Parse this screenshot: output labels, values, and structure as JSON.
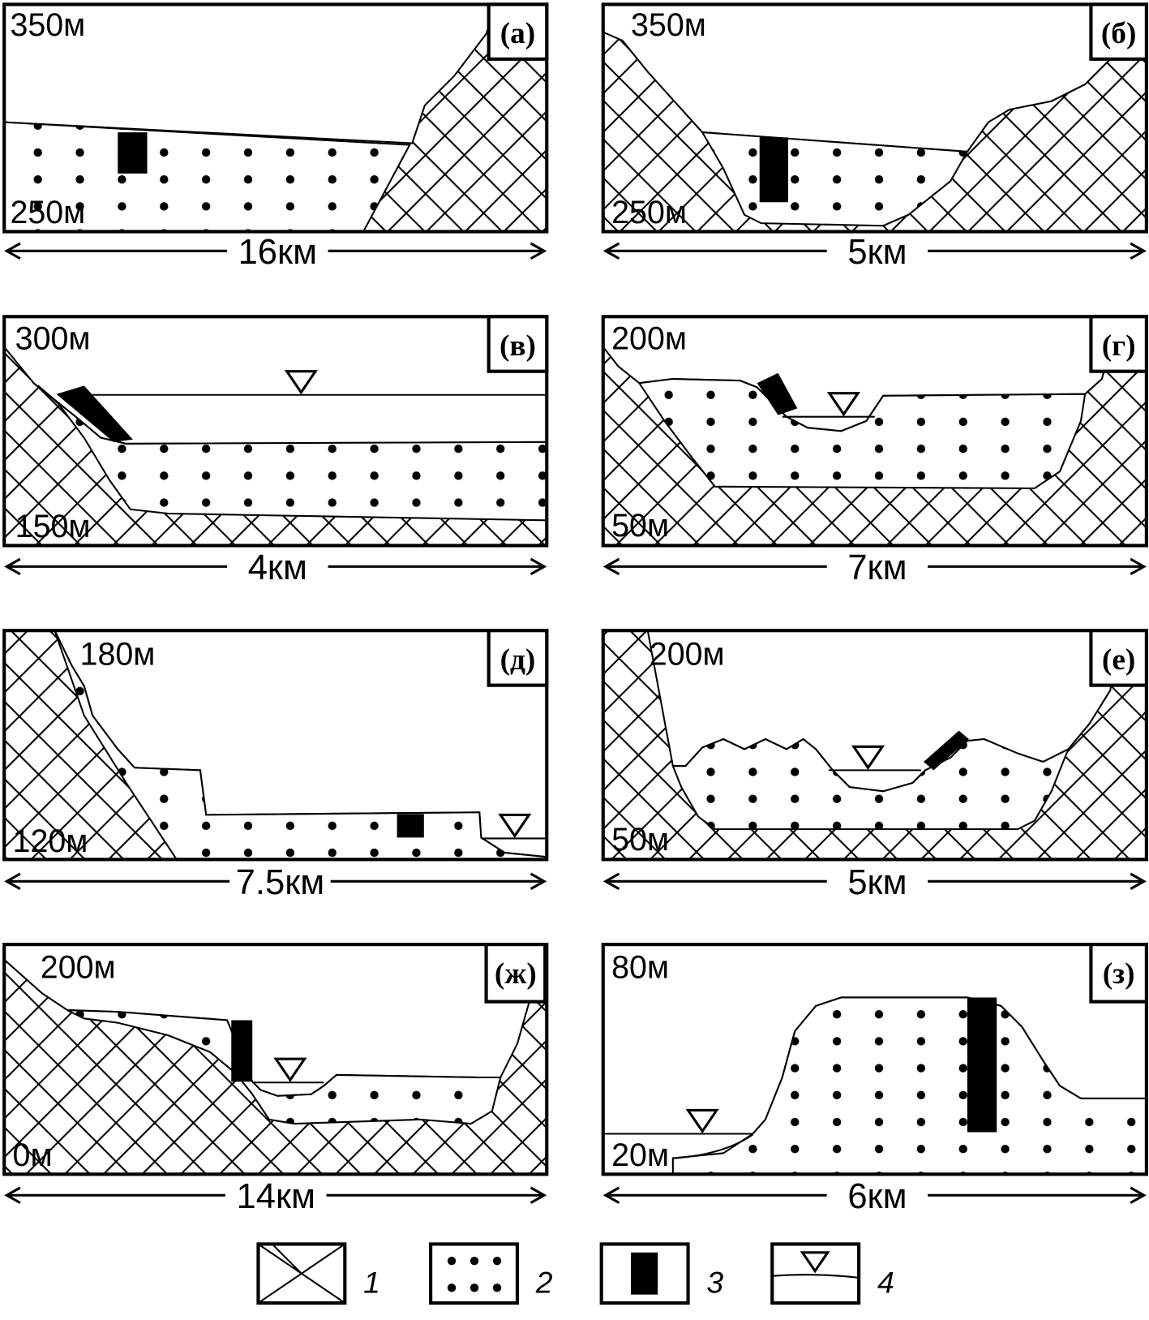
{
  "panels": [
    {
      "label": "(а)",
      "elev_top": "350м",
      "elev_bottom": "250м",
      "width": "16км"
    },
    {
      "label": "(б)",
      "elev_top": "350м",
      "elev_bottom": "250м",
      "width": "5км"
    },
    {
      "label": "(в)",
      "elev_top": "300м",
      "elev_bottom": "150м",
      "width": "4км"
    },
    {
      "label": "(г)",
      "elev_top": "200м",
      "elev_bottom": "50м",
      "width": "7км"
    },
    {
      "label": "(д)",
      "elev_top": "180м",
      "elev_bottom": "120м",
      "width": "7.5км"
    },
    {
      "label": "(е)",
      "elev_top": "200м",
      "elev_bottom": "50м",
      "width": "5км"
    },
    {
      "label": "(ж)",
      "elev_top": "200м",
      "elev_bottom": "0м",
      "width": "14км"
    },
    {
      "label": "(з)",
      "elev_top": "80м",
      "elev_bottom": "20м",
      "width": "6км"
    }
  ],
  "legend": [
    {
      "number": "1",
      "symbol": "crosshatch"
    },
    {
      "number": "2",
      "symbol": "dots"
    },
    {
      "number": "3",
      "symbol": "black-block"
    },
    {
      "number": "4",
      "symbol": "water-level-triangle"
    }
  ]
}
